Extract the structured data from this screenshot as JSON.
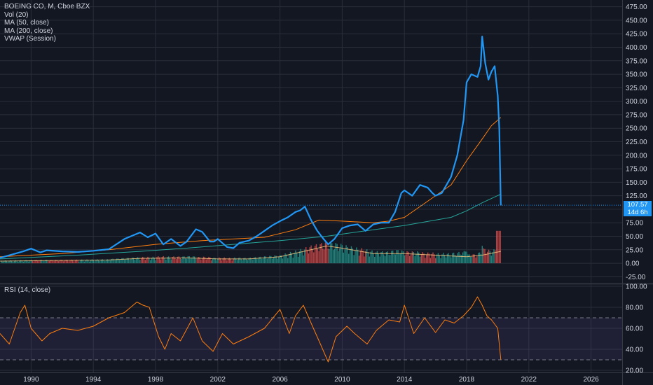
{
  "legend": {
    "title": "BOEING CO, M, Cboe BZX",
    "indicators": [
      "Vol (20)",
      "MA (50, close)",
      "MA (200, close)",
      "VWAP (Session)"
    ]
  },
  "rsi_legend": "RSI (14, close)",
  "last_price_tag": "107.57",
  "countdown_tag": "14d 6h",
  "colors": {
    "background": "#131722",
    "grid": "#2a2e39",
    "price": "#2196f3",
    "ma50": "#ff7f0e",
    "ma200": "#26a69a",
    "vol_up": "#26a69a",
    "vol_down": "#ef5350",
    "rsi": "#ff7f0e",
    "rsi_band": "#7e57c2"
  },
  "chart_data": [
    {
      "type": "line",
      "title": "BOEING CO, M, Cboe BZX",
      "ylim": [
        -37.5,
        487.5
      ],
      "y_ticks": [
        "475.00",
        "450.00",
        "425.00",
        "400.00",
        "375.00",
        "350.00",
        "325.00",
        "300.00",
        "275.00",
        "250.00",
        "225.00",
        "200.00",
        "175.00",
        "150.00",
        "125.00",
        "100.00",
        "75.00",
        "50.00",
        "25.00",
        "0.00",
        "-25.00"
      ],
      "x_tick_labels": [
        "1990",
        "1994",
        "1998",
        "2002",
        "2006",
        "2010",
        "2014",
        "2018",
        "2022",
        "2026"
      ],
      "x_tick_years": [
        1990,
        1994,
        1998,
        2002,
        2006,
        2010,
        2014,
        2018,
        2022,
        2026
      ],
      "xlim": [
        1988,
        2028
      ],
      "series": [
        {
          "role": "price",
          "x": [
            1988.0,
            1989.0,
            1989.5,
            1990.0,
            1990.6,
            1991.0,
            1992.0,
            1993.0,
            1994.0,
            1995.0,
            1996.0,
            1997.0,
            1997.5,
            1998.0,
            1998.5,
            1999.0,
            1999.6,
            2000.0,
            2000.6,
            2001.0,
            2001.5,
            2001.75,
            2002.0,
            2002.6,
            2003.0,
            2003.4,
            2004.0,
            2004.5,
            2005.0,
            2005.5,
            2006.0,
            2006.5,
            2007.0,
            2007.3,
            2007.6,
            2008.0,
            2008.4,
            2008.8,
            2009.1,
            2009.5,
            2010.0,
            2010.5,
            2011.0,
            2011.5,
            2012.0,
            2012.5,
            2013.0,
            2013.4,
            2013.8,
            2014.0,
            2014.5,
            2015.0,
            2015.5,
            2015.8,
            2016.0,
            2016.4,
            2016.8,
            2017.0,
            2017.4,
            2017.8,
            2018.0,
            2018.3,
            2018.7,
            2018.9,
            2019.0,
            2019.2,
            2019.4,
            2019.6,
            2019.8,
            2020.0,
            2020.1,
            2020.2
          ],
          "values": [
            10,
            18,
            22,
            27,
            20,
            24,
            22,
            21,
            23,
            26,
            45,
            57,
            48,
            55,
            35,
            45,
            32,
            40,
            63,
            58,
            40,
            40,
            45,
            30,
            28,
            38,
            42,
            50,
            60,
            70,
            78,
            85,
            95,
            98,
            105,
            80,
            60,
            45,
            35,
            45,
            65,
            70,
            72,
            60,
            72,
            75,
            75,
            95,
            130,
            135,
            125,
            145,
            140,
            130,
            125,
            130,
            150,
            160,
            200,
            265,
            335,
            350,
            345,
            365,
            420,
            370,
            340,
            355,
            365,
            310,
            250,
            107
          ]
        },
        {
          "role": "ma50",
          "x": [
            1988.0,
            1992.0,
            1995.0,
            1998.0,
            2001.0,
            2003.0,
            2005.0,
            2007.0,
            2008.5,
            2010.0,
            2012.0,
            2013.0,
            2014.0,
            2015.0,
            2016.0,
            2017.0,
            2018.0,
            2019.0,
            2019.6,
            2020.2
          ],
          "values": [
            12,
            18,
            25,
            35,
            42,
            45,
            48,
            62,
            80,
            78,
            75,
            78,
            85,
            105,
            125,
            145,
            190,
            230,
            255,
            270
          ]
        },
        {
          "role": "ma200",
          "x": [
            1988.0,
            1993.0,
            1997.0,
            2000.0,
            2003.0,
            2006.0,
            2009.0,
            2012.0,
            2014.0,
            2016.0,
            2017.0,
            2018.0,
            2019.0,
            2020.2
          ],
          "values": [
            8,
            15,
            22,
            28,
            35,
            42,
            50,
            62,
            70,
            80,
            85,
            97,
            112,
            128
          ]
        }
      ]
    },
    {
      "type": "bar",
      "title": "Vol (20)",
      "ylim": [
        -37.5,
        487.5
      ],
      "note_up_down": "green = up month, red = down month",
      "vol_ma": {
        "x": [
          1988.0,
          1995.0,
          1997.0,
          2000.0,
          2002.0,
          2004.0,
          2006.0,
          2008.0,
          2009.0,
          2010.0,
          2012.0,
          2014.0,
          2016.0,
          2018.0,
          2019.0,
          2020.2
        ],
        "values": [
          4,
          6,
          9,
          10,
          8,
          8,
          12,
          25,
          32,
          28,
          18,
          18,
          15,
          12,
          15,
          22
        ]
      }
    },
    {
      "type": "line",
      "title": "RSI (14, close)",
      "ylim": [
        18,
        102
      ],
      "y_ticks": [
        "100.00",
        "80.00",
        "60.00",
        "40.00",
        "20.00"
      ],
      "bands": [
        30,
        70
      ],
      "series": [
        {
          "role": "rsi",
          "x": [
            1988.0,
            1988.6,
            1989.3,
            1989.6,
            1990.0,
            1990.7,
            1991.2,
            1992.0,
            1993.0,
            1994.0,
            1995.0,
            1996.0,
            1996.8,
            1997.2,
            1997.6,
            1998.2,
            1998.6,
            1999.0,
            1999.6,
            2000.4,
            2001.0,
            2001.7,
            2002.3,
            2003.0,
            2004.0,
            2005.0,
            2006.0,
            2006.6,
            2007.0,
            2007.5,
            2008.0,
            2008.6,
            2009.1,
            2009.6,
            2010.3,
            2010.8,
            2011.6,
            2012.2,
            2013.0,
            2013.7,
            2014.0,
            2014.6,
            2015.3,
            2016.0,
            2016.6,
            2017.2,
            2017.8,
            2018.3,
            2018.7,
            2019.0,
            2019.3,
            2019.6,
            2020.0,
            2020.2
          ],
          "values": [
            55,
            45,
            75,
            82,
            60,
            48,
            55,
            60,
            58,
            62,
            70,
            75,
            85,
            82,
            80,
            52,
            40,
            55,
            48,
            70,
            48,
            38,
            55,
            45,
            52,
            60,
            78,
            55,
            72,
            82,
            65,
            45,
            28,
            52,
            62,
            55,
            45,
            58,
            68,
            66,
            82,
            55,
            70,
            56,
            68,
            65,
            72,
            80,
            90,
            82,
            72,
            68,
            60,
            30
          ]
        }
      ]
    }
  ]
}
